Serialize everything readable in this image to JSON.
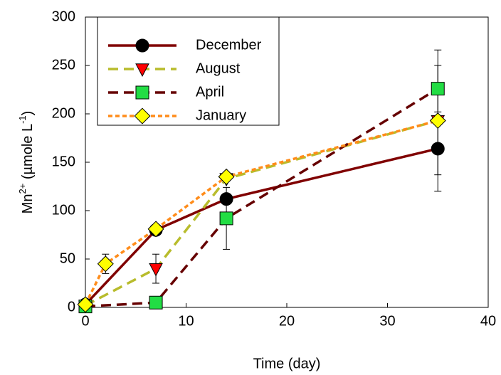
{
  "chart_data": {
    "type": "line",
    "x_label": "Time (day)",
    "y_label": [
      {
        "text": "Mn"
      },
      {
        "text": "2+",
        "sup": true
      },
      {
        "text": " (µmole L"
      },
      {
        "text": "-1",
        "sup": true
      },
      {
        "text": ")"
      }
    ],
    "xlim": [
      0,
      40
    ],
    "xticks": [
      0,
      10,
      20,
      30,
      40
    ],
    "ylim": [
      0,
      300
    ],
    "yticks": [
      0,
      50,
      100,
      150,
      200,
      250,
      300
    ],
    "legend": "upper left",
    "series": [
      {
        "name": "December",
        "color": "#800000",
        "marker": "circle",
        "marker_color": "#000000",
        "dash": "solid",
        "x": [
          0,
          7,
          14,
          35
        ],
        "values": [
          3,
          80,
          112,
          164
        ],
        "errors": [
          null,
          null,
          null,
          27
        ]
      },
      {
        "name": "August",
        "color": "#b8bc2c",
        "marker": "triangle-down",
        "marker_color": "#ff0000",
        "dash": "dashed",
        "x": [
          0,
          7,
          14,
          35
        ],
        "values": [
          2,
          40,
          133,
          193
        ],
        "errors": [
          null,
          15,
          null,
          73
        ]
      },
      {
        "name": "April",
        "color": "#660000",
        "marker": "square",
        "marker_color": "#22dd44",
        "dash": "dashed",
        "x": [
          0,
          7,
          14,
          35
        ],
        "values": [
          1,
          5,
          92,
          226
        ],
        "errors": [
          null,
          null,
          32,
          24
        ]
      },
      {
        "name": "January",
        "color": "#ff8c1a",
        "marker": "diamond",
        "marker_color": "#ffff00",
        "dash": "dotted",
        "x": [
          0,
          2,
          7,
          14,
          35
        ],
        "values": [
          3,
          45,
          81,
          135,
          193
        ],
        "errors": [
          null,
          10,
          null,
          null,
          null
        ]
      }
    ]
  }
}
